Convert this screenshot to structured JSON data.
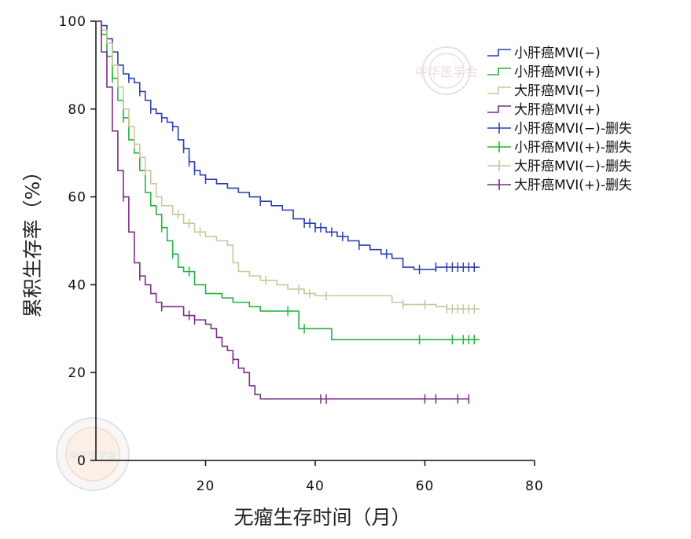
{
  "chart_data": {
    "type": "line",
    "subtype": "kaplan-meier survival curves",
    "title": "",
    "xlabel": "无瘤生存时间（月）",
    "ylabel": "累积生存率（%）",
    "xlim": [
      0,
      80
    ],
    "ylim": [
      0,
      100
    ],
    "xticks": [
      20,
      40,
      60,
      80
    ],
    "yticks": [
      0,
      20,
      40,
      60,
      80,
      100
    ],
    "legend_position": "top-right",
    "series": [
      {
        "name": "小肝癌MVI(−)",
        "censored_label": "小肝癌MVI(−)-删失",
        "color": "#2b3fb3",
        "points": [
          [
            0,
            100
          ],
          [
            1,
            99
          ],
          [
            2,
            96
          ],
          [
            3,
            93
          ],
          [
            4,
            90
          ],
          [
            5,
            88
          ],
          [
            6,
            87
          ],
          [
            7,
            86
          ],
          [
            8,
            84
          ],
          [
            9,
            82
          ],
          [
            10,
            80
          ],
          [
            11,
            79
          ],
          [
            12,
            78
          ],
          [
            13,
            77
          ],
          [
            14,
            76
          ],
          [
            15,
            73
          ],
          [
            16,
            71
          ],
          [
            17,
            68
          ],
          [
            18,
            66
          ],
          [
            19,
            65
          ],
          [
            20,
            64
          ],
          [
            22,
            63
          ],
          [
            24,
            62
          ],
          [
            26,
            61
          ],
          [
            28,
            60
          ],
          [
            30,
            59
          ],
          [
            32,
            58
          ],
          [
            34,
            57
          ],
          [
            36,
            55
          ],
          [
            38,
            54
          ],
          [
            40,
            53
          ],
          [
            42,
            52
          ],
          [
            44,
            51
          ],
          [
            46,
            50
          ],
          [
            48,
            49
          ],
          [
            50,
            48
          ],
          [
            52,
            47
          ],
          [
            54,
            46
          ],
          [
            56,
            44
          ],
          [
            58,
            43.5
          ],
          [
            60,
            43.5
          ],
          [
            62,
            44
          ],
          [
            70,
            44
          ]
        ],
        "censored_x": [
          6,
          8,
          10,
          12,
          14,
          16,
          17,
          18,
          20,
          30,
          38,
          39,
          40,
          41,
          43,
          45,
          48,
          53,
          59,
          62,
          64,
          65,
          66,
          67,
          68,
          69
        ]
      },
      {
        "name": "小肝癌MVI(+)",
        "censored_label": "小肝癌MVI(+)-删失",
        "color": "#22b33a",
        "points": [
          [
            0,
            100
          ],
          [
            1,
            97
          ],
          [
            2,
            92
          ],
          [
            3,
            87
          ],
          [
            4,
            82
          ],
          [
            5,
            78
          ],
          [
            6,
            73
          ],
          [
            7,
            70
          ],
          [
            8,
            66
          ],
          [
            9,
            61
          ],
          [
            10,
            58
          ],
          [
            11,
            56
          ],
          [
            12,
            53
          ],
          [
            13,
            50
          ],
          [
            14,
            47
          ],
          [
            15,
            44
          ],
          [
            16,
            43
          ],
          [
            18,
            40
          ],
          [
            20,
            38
          ],
          [
            23,
            37
          ],
          [
            25,
            36
          ],
          [
            28,
            35
          ],
          [
            30,
            34
          ],
          [
            35,
            34
          ],
          [
            37,
            30
          ],
          [
            42,
            30
          ],
          [
            43,
            27.5
          ],
          [
            60,
            27.5
          ],
          [
            70,
            27.5
          ]
        ],
        "censored_x": [
          3,
          5,
          12,
          14,
          17,
          35,
          38,
          59,
          65,
          67,
          68,
          69
        ]
      },
      {
        "name": "大肝癌MVI(−)",
        "censored_label": "大肝癌MVI(−)-删失",
        "color": "#c9c79a",
        "points": [
          [
            0,
            100
          ],
          [
            1,
            98
          ],
          [
            2,
            95
          ],
          [
            3,
            90
          ],
          [
            4,
            85
          ],
          [
            5,
            80
          ],
          [
            6,
            76
          ],
          [
            7,
            72
          ],
          [
            8,
            69
          ],
          [
            9,
            66
          ],
          [
            10,
            63
          ],
          [
            11,
            60
          ],
          [
            12,
            58
          ],
          [
            14,
            56
          ],
          [
            16,
            54
          ],
          [
            18,
            52
          ],
          [
            20,
            51
          ],
          [
            22,
            50
          ],
          [
            24,
            49
          ],
          [
            25,
            45
          ],
          [
            26,
            43
          ],
          [
            28,
            42
          ],
          [
            30,
            41
          ],
          [
            33,
            40
          ],
          [
            35,
            39
          ],
          [
            38,
            38
          ],
          [
            40,
            37.5
          ],
          [
            45,
            37.5
          ],
          [
            52,
            37.5
          ],
          [
            54,
            36
          ],
          [
            56,
            35.5
          ],
          [
            60,
            35.5
          ],
          [
            62,
            35
          ],
          [
            64,
            34.5
          ],
          [
            70,
            34.5
          ]
        ],
        "censored_x": [
          7,
          9,
          15,
          17,
          19,
          31,
          37,
          39,
          42,
          56,
          60,
          64,
          65,
          66,
          67,
          68,
          69
        ]
      },
      {
        "name": "大肝癌MVI(+)",
        "censored_label": "大肝癌MVI(+)-删失",
        "color": "#7a2d87",
        "points": [
          [
            0,
            100
          ],
          [
            1,
            93
          ],
          [
            2,
            85
          ],
          [
            3,
            75
          ],
          [
            4,
            66
          ],
          [
            5,
            60
          ],
          [
            6,
            52
          ],
          [
            7,
            45
          ],
          [
            8,
            42
          ],
          [
            9,
            40
          ],
          [
            10,
            38
          ],
          [
            11,
            36
          ],
          [
            12,
            35
          ],
          [
            14,
            35
          ],
          [
            16,
            33
          ],
          [
            18,
            32
          ],
          [
            20,
            31
          ],
          [
            21,
            30
          ],
          [
            22,
            28
          ],
          [
            23,
            26
          ],
          [
            24,
            25
          ],
          [
            25,
            23
          ],
          [
            26,
            21
          ],
          [
            27,
            20
          ],
          [
            28,
            17
          ],
          [
            29,
            15
          ],
          [
            30,
            14
          ],
          [
            35,
            14
          ],
          [
            40,
            14
          ],
          [
            60,
            14
          ],
          [
            68,
            14
          ]
        ],
        "censored_x": [
          5,
          8,
          12,
          17,
          18,
          25,
          41,
          42,
          60,
          62,
          66,
          68
        ]
      }
    ],
    "watermark_text": "中华医学会"
  }
}
